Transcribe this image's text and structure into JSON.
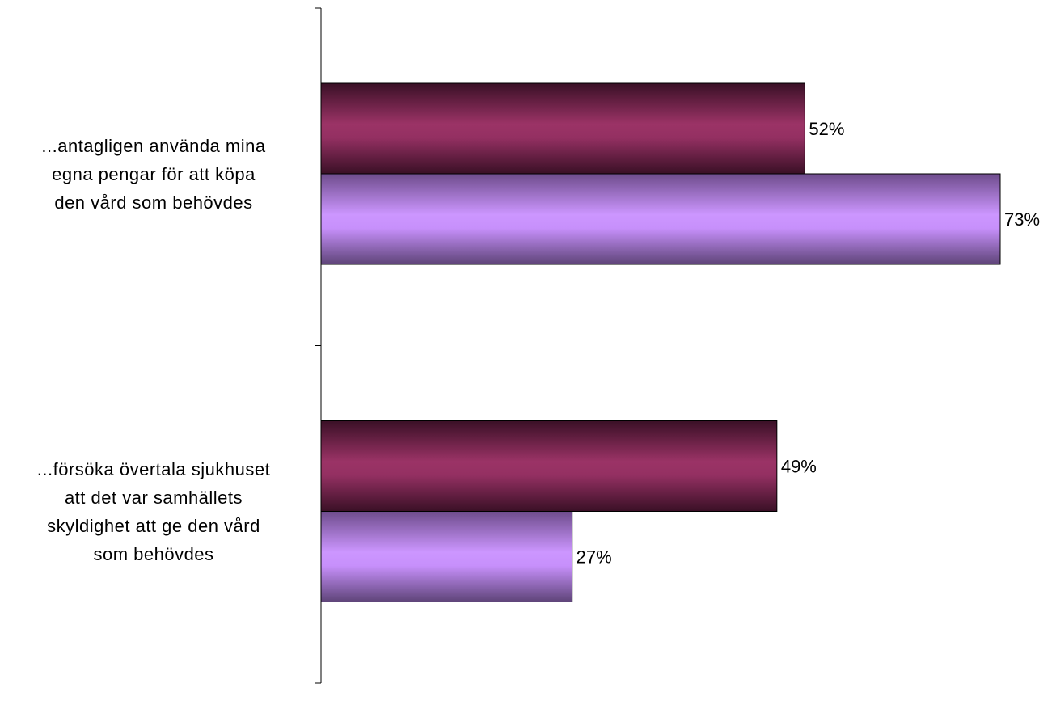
{
  "chart_data": {
    "type": "bar",
    "orientation": "horizontal",
    "categories": [
      [
        "...antagligen använda mina",
        "egna pengar för att köpa",
        "den vård som behövdes"
      ],
      [
        "...försöka övertala sjukhuset",
        "att det var samhällets",
        "skyldighet att ge den vård",
        "som behövdes"
      ]
    ],
    "series": [
      {
        "values": [
          52,
          49
        ],
        "labels": [
          "52%",
          "49%"
        ],
        "color": "#8e2d5e"
      },
      {
        "values": [
          73,
          27
        ],
        "labels": [
          "73%",
          "27%"
        ],
        "color": "#c592f5"
      }
    ],
    "xlim": [
      0,
      100
    ],
    "grid": false,
    "legend": "none"
  }
}
